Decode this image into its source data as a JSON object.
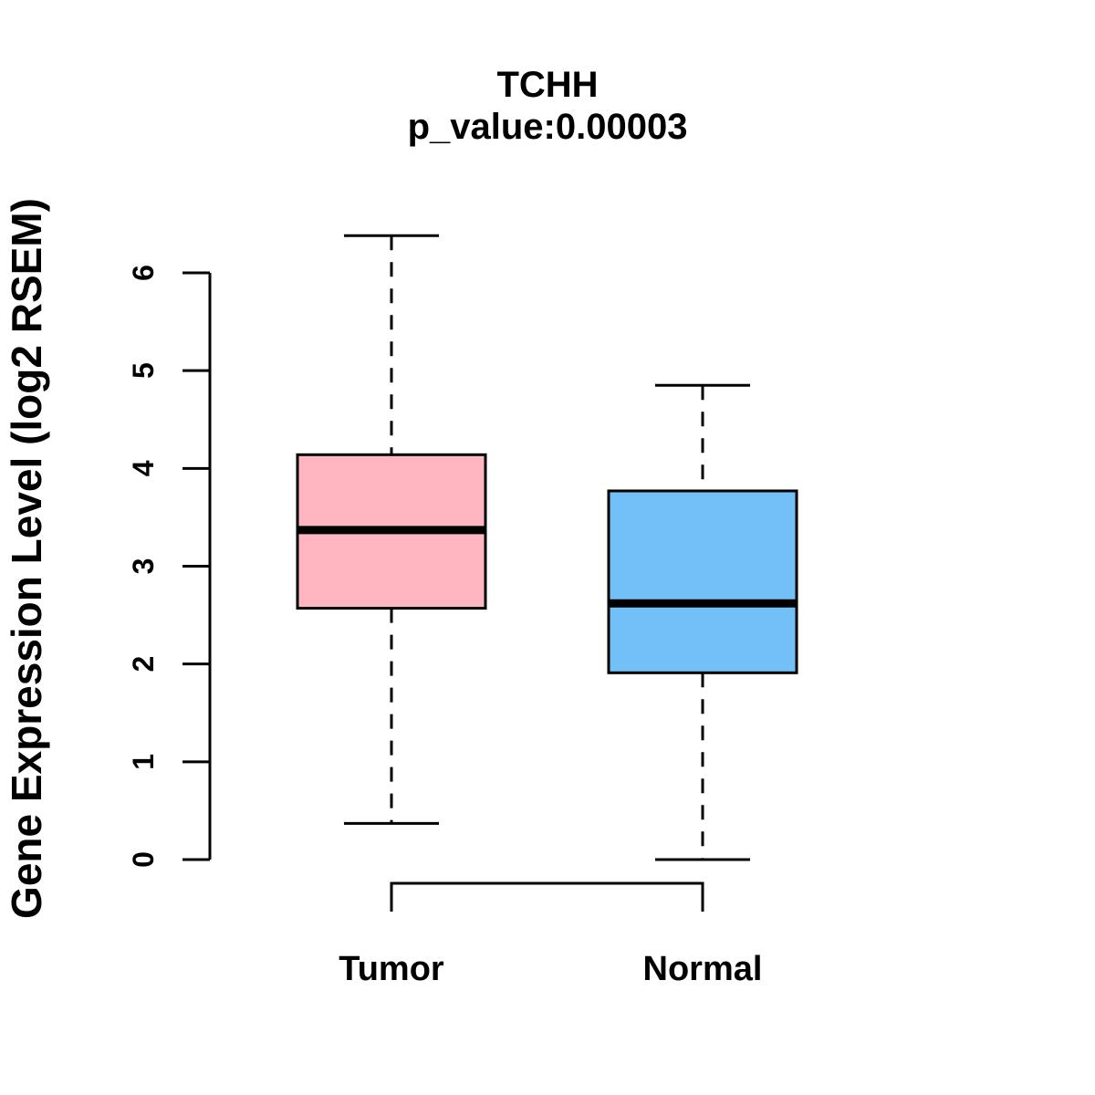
{
  "title": {
    "gene": "TCHH",
    "p_value_line": "p_value:0.00003"
  },
  "y_axis": {
    "label": "Gene Expression Level (log2 RSEM)"
  },
  "chart_data": {
    "type": "boxplot",
    "title": "TCHH",
    "subtitle": "p_value:0.00003",
    "xlabel": "",
    "ylabel": "Gene Expression Level (log2 RSEM)",
    "ylim": [
      0,
      6.45
    ],
    "y_ticks": [
      0,
      1,
      2,
      3,
      4,
      5,
      6
    ],
    "categories": [
      "Tumor",
      "Normal"
    ],
    "series": [
      {
        "name": "Tumor",
        "box_color": "#FFB6C1",
        "whisker_low": 0.37,
        "q1": 2.57,
        "median": 3.37,
        "q3": 4.14,
        "whisker_high": 6.38
      },
      {
        "name": "Normal",
        "box_color": "#73BFF7",
        "whisker_low": 0.0,
        "q1": 1.91,
        "median": 2.62,
        "q3": 3.77,
        "whisker_high": 4.85
      }
    ],
    "stroke_color": "#000000",
    "background_color": "#FFFFFF",
    "whisker_style": "dashed",
    "grid": false,
    "legend": "none"
  }
}
